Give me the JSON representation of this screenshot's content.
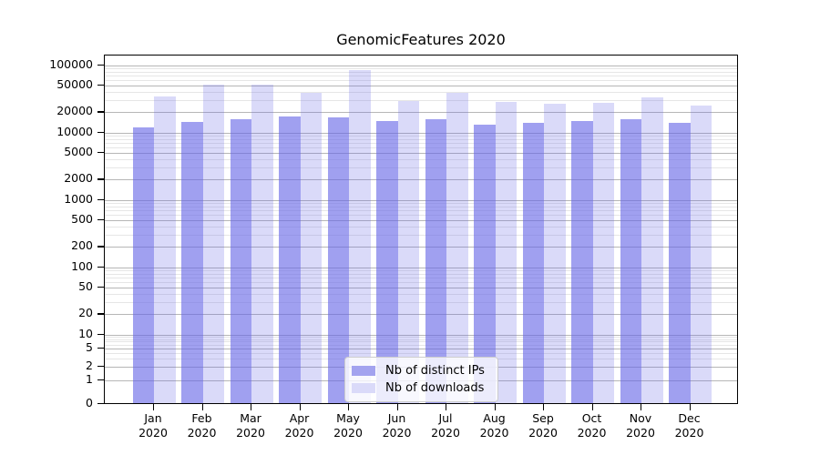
{
  "title": "GenomicFeatures 2020",
  "colors": {
    "background": "#ffffff",
    "axis": "#000000",
    "grid_major": "#b6b6b6",
    "grid_minor": "#e6e6e6",
    "legend_border": "#cccccc"
  },
  "chart_data": {
    "type": "bar",
    "title": "GenomicFeatures 2020",
    "xlabel": "",
    "ylabel": "",
    "yscale": "symlog",
    "grid": true,
    "legend_position": "lower center",
    "ylim": [
      0,
      140000
    ],
    "yticks": [
      100000,
      50000,
      20000,
      10000,
      5000,
      2000,
      1000,
      500,
      200,
      100,
      50,
      20,
      10,
      5,
      2,
      1,
      0
    ],
    "categories": [
      "Jan 2020",
      "Feb 2020",
      "Mar 2020",
      "Apr 2020",
      "May 2020",
      "Jun 2020",
      "Jul 2020",
      "Aug 2020",
      "Sep 2020",
      "Oct 2020",
      "Nov 2020",
      "Dec 2020"
    ],
    "series": [
      {
        "name": "Nb of distinct IPs",
        "color": "rgba(102,102,230,0.62)",
        "legend_color": "#a3a3ef",
        "values": [
          11200,
          13500,
          15000,
          16300,
          15800,
          14000,
          15100,
          12300,
          13300,
          13900,
          15000,
          13000
        ]
      },
      {
        "name": "Nb of downloads",
        "color": "rgba(102,102,230,0.24)",
        "legend_color": "#dadaf9",
        "values": [
          32600,
          49000,
          48000,
          36500,
          81000,
          27900,
          37000,
          26600,
          25200,
          26000,
          31600,
          23900
        ]
      }
    ]
  }
}
